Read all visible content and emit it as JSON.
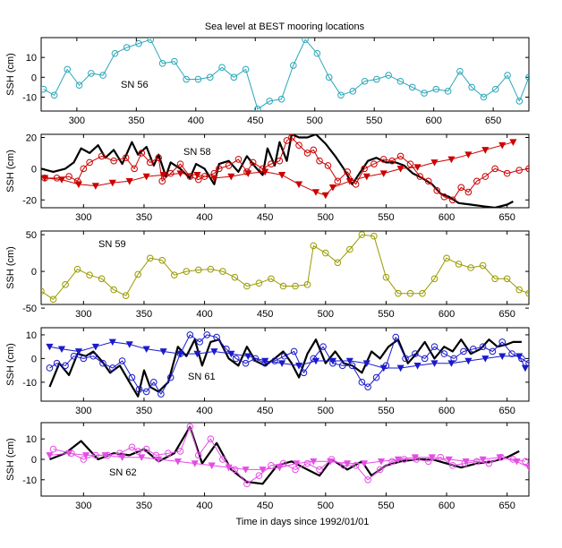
{
  "figure": {
    "title": "Sea level at BEST mooring locations",
    "xlabel": "Time in days since 1992/01/01"
  },
  "chart_data": [
    {
      "type": "line",
      "panel_label": "SN 56",
      "ylabel": "SSH (cm)",
      "xlim": [
        270,
        680
      ],
      "ylim": [
        -17,
        20
      ],
      "xticks": [
        300,
        350,
        400,
        450,
        500,
        550,
        600,
        650
      ],
      "yticks": [
        -10,
        0,
        10
      ],
      "series": [
        {
          "color": "#2aa7b8",
          "marker": "circle",
          "line": "solid",
          "x": [
            272,
            281,
            292,
            302,
            312,
            322,
            332,
            342,
            352,
            362,
            372,
            382,
            392,
            402,
            412,
            422,
            432,
            442,
            452,
            462,
            472,
            482,
            492,
            502,
            512,
            522,
            532,
            542,
            552,
            562,
            572,
            582,
            592,
            602,
            612,
            622,
            632,
            642,
            652,
            662,
            672,
            680
          ],
          "y": [
            -6,
            -9,
            4,
            -4,
            2,
            1,
            12,
            15,
            17,
            19,
            7,
            8,
            -1,
            -1,
            0,
            5,
            0,
            4,
            -16,
            -12,
            -11,
            6,
            19,
            12,
            0,
            -9,
            -7,
            -2,
            -1,
            1,
            -2,
            -5,
            -8,
            -6,
            -7,
            3,
            -5,
            -10,
            -6,
            1,
            -12,
            0
          ]
        }
      ]
    },
    {
      "type": "line",
      "panel_label": "SN 58",
      "ylabel": "SSH (cm)",
      "xlim": [
        265,
        668
      ],
      "ylim": [
        -25,
        22
      ],
      "xticks": [
        300,
        350,
        400,
        450,
        500,
        550,
        600,
        650
      ],
      "yticks": [
        -20,
        0,
        20
      ],
      "series": [
        {
          "color": "#000000",
          "marker": "none",
          "line": "thick",
          "x": [
            265,
            275,
            285,
            292,
            298,
            305,
            312,
            318,
            325,
            332,
            340,
            345,
            352,
            358,
            362,
            368,
            372,
            380,
            388,
            393,
            400,
            408,
            412,
            420,
            428,
            435,
            442,
            448,
            452,
            458,
            462,
            468,
            472,
            478,
            485,
            492,
            500,
            508,
            515,
            522,
            528,
            535,
            542,
            550,
            558,
            565,
            572,
            580,
            588,
            595,
            602,
            610,
            620,
            630,
            640,
            650,
            655
          ],
          "y": [
            0,
            -2,
            0,
            4,
            13,
            10,
            15,
            7,
            12,
            3,
            17,
            9,
            14,
            2,
            9,
            -5,
            4,
            0,
            -6,
            3,
            0,
            -10,
            3,
            5,
            -2,
            8,
            1,
            -4,
            13,
            2,
            17,
            5,
            22,
            20,
            20,
            22,
            16,
            8,
            0,
            -10,
            -3,
            5,
            7,
            4,
            4,
            2,
            -3,
            -6,
            -10,
            -16,
            -18,
            -22,
            -23,
            -24,
            -25,
            -23,
            -21
          ]
        },
        {
          "color": "#cc0000",
          "marker": "circle",
          "line": "solid",
          "x": [
            268,
            278,
            288,
            295,
            300,
            305,
            315,
            325,
            335,
            342,
            348,
            355,
            362,
            365,
            372,
            380,
            388,
            395,
            400,
            408,
            412,
            420,
            428,
            435,
            440,
            448,
            455,
            462,
            468,
            472,
            478,
            485,
            490,
            495,
            502,
            510,
            518,
            525,
            532,
            540,
            548,
            555,
            562,
            570,
            578,
            585,
            592,
            598,
            605,
            612,
            618,
            625,
            632,
            640,
            650,
            660,
            668
          ],
          "y": [
            -6,
            -6,
            -5,
            -8,
            0,
            4,
            8,
            5,
            7,
            0,
            10,
            4,
            7,
            -8,
            -3,
            3,
            -5,
            -7,
            -5,
            -3,
            0,
            2,
            6,
            -2,
            4,
            0,
            3,
            5,
            18,
            20,
            15,
            10,
            12,
            5,
            2,
            -8,
            -2,
            -10,
            0,
            3,
            6,
            5,
            8,
            3,
            -5,
            -8,
            -14,
            -18,
            -20,
            -12,
            -15,
            -8,
            -5,
            0,
            -3,
            -1,
            0
          ]
        },
        {
          "color": "#cc0000",
          "marker": "triangle",
          "line": "solid",
          "x": [
            268,
            282,
            296,
            310,
            324,
            338,
            352,
            366,
            380,
            394,
            408,
            422,
            436,
            450,
            464,
            478,
            492,
            500,
            506,
            520,
            534,
            548,
            562,
            576,
            590,
            604,
            618,
            632,
            646,
            655
          ],
          "y": [
            -6,
            -7,
            -10,
            -11,
            -9,
            -8,
            -5,
            -4,
            -3,
            -4,
            -6,
            -5,
            -3,
            -2,
            -4,
            -10,
            -15,
            -17,
            -12,
            -8,
            -5,
            -3,
            0,
            1,
            4,
            6,
            9,
            12,
            15,
            17
          ]
        }
      ]
    },
    {
      "type": "line",
      "panel_label": "SN 59",
      "ylabel": "SSH (cm)",
      "xlim": [
        265,
        668
      ],
      "ylim": [
        -45,
        55
      ],
      "xticks": [
        300,
        350,
        400,
        450,
        500,
        550,
        600,
        650
      ],
      "yticks": [
        -50,
        0,
        50
      ],
      "series": [
        {
          "color": "#9a9a00",
          "marker": "circle",
          "line": "solid",
          "x": [
            265,
            275,
            285,
            295,
            305,
            315,
            325,
            335,
            345,
            355,
            365,
            375,
            385,
            395,
            405,
            415,
            425,
            435,
            445,
            455,
            465,
            475,
            485,
            490,
            500,
            510,
            520,
            530,
            540,
            550,
            560,
            570,
            580,
            590,
            600,
            610,
            620,
            630,
            640,
            650,
            660,
            668
          ],
          "y": [
            -27,
            -38,
            -18,
            3,
            -5,
            -10,
            -25,
            -33,
            -4,
            18,
            15,
            -5,
            0,
            2,
            3,
            0,
            -8,
            -20,
            -16,
            -10,
            -20,
            -20,
            -18,
            35,
            25,
            12,
            30,
            50,
            48,
            -8,
            -30,
            -30,
            -30,
            -10,
            18,
            10,
            5,
            8,
            -10,
            -10,
            -25,
            -30
          ]
        }
      ]
    },
    {
      "type": "line",
      "panel_label": "SN 61",
      "ylabel": "SSH (cm)",
      "xlim": [
        265,
        668
      ],
      "ylim": [
        -18,
        13
      ],
      "xticks": [
        300,
        350,
        400,
        450,
        500,
        550,
        600,
        650
      ],
      "yticks": [
        -10,
        0,
        10
      ],
      "series": [
        {
          "color": "#000000",
          "marker": "none",
          "line": "thick",
          "x": [
            272,
            280,
            288,
            295,
            302,
            308,
            315,
            322,
            330,
            338,
            345,
            350,
            355,
            362,
            370,
            378,
            385,
            392,
            398,
            405,
            412,
            420,
            428,
            435,
            442,
            450,
            458,
            465,
            472,
            478,
            485,
            492,
            500,
            508,
            515,
            522,
            530,
            538,
            545,
            552,
            560,
            568,
            575,
            582,
            590,
            598,
            605,
            612,
            620,
            628,
            635,
            642,
            650,
            655,
            662
          ],
          "y": [
            -12,
            -2,
            -7,
            2,
            1,
            3,
            -1,
            -6,
            -3,
            -10,
            -16,
            -5,
            -12,
            -14,
            -10,
            5,
            1,
            8,
            -3,
            7,
            8,
            0,
            -3,
            5,
            -1,
            -3,
            0,
            3,
            -2,
            -8,
            2,
            8,
            -2,
            3,
            -2,
            -3,
            -6,
            3,
            0,
            5,
            8,
            -2,
            2,
            7,
            0,
            5,
            3,
            8,
            2,
            4,
            8,
            5,
            6,
            7,
            7
          ]
        },
        {
          "color": "#1a1acc",
          "marker": "circle",
          "line": "solid",
          "x": [
            272,
            278,
            285,
            292,
            300,
            308,
            316,
            324,
            332,
            340,
            346,
            352,
            358,
            364,
            372,
            380,
            388,
            396,
            402,
            410,
            418,
            426,
            434,
            442,
            450,
            458,
            466,
            474,
            482,
            490,
            498,
            506,
            514,
            522,
            530,
            535,
            542,
            550,
            558,
            566,
            574,
            582,
            590,
            598,
            606,
            614,
            622,
            630,
            638,
            646,
            654,
            662,
            668
          ],
          "y": [
            -4,
            -2,
            -3,
            1,
            0,
            1,
            -2,
            -4,
            -1,
            -8,
            -13,
            -14,
            -10,
            -15,
            -8,
            2,
            10,
            7,
            10,
            9,
            4,
            0,
            -2,
            0,
            -2,
            -1,
            1,
            3,
            -6,
            0,
            5,
            -2,
            -3,
            -3,
            -10,
            -12,
            -8,
            -3,
            9,
            0,
            2,
            0,
            5,
            2,
            0,
            3,
            4,
            5,
            3,
            7,
            2,
            0,
            -2
          ]
        },
        {
          "color": "#1a1acc",
          "marker": "triangle",
          "line": "solid",
          "x": [
            272,
            282,
            296,
            310,
            324,
            338,
            352,
            366,
            380,
            394,
            408,
            422,
            436,
            450,
            464,
            478,
            492,
            506,
            520,
            534,
            548,
            562,
            576,
            590,
            604,
            618,
            632,
            646,
            660,
            665
          ],
          "y": [
            5,
            4,
            3,
            5,
            7,
            6,
            4,
            3,
            2,
            2,
            3,
            2,
            1,
            -1,
            -2,
            -3,
            -1,
            -1,
            -1,
            -2,
            -4,
            -4,
            -3,
            -2,
            -2,
            -1,
            0,
            1,
            1,
            -4
          ]
        }
      ]
    },
    {
      "type": "line",
      "panel_label": "SN 62",
      "ylabel": "SSH (cm)",
      "xlim": [
        265,
        668
      ],
      "ylim": [
        -18,
        18
      ],
      "xticks": [
        300,
        350,
        400,
        450,
        500,
        550,
        600,
        650
      ],
      "yticks": [
        -10,
        0,
        10
      ],
      "series": [
        {
          "color": "#000000",
          "marker": "none",
          "line": "thick",
          "x": [
            272,
            285,
            298,
            312,
            325,
            338,
            350,
            362,
            375,
            388,
            398,
            410,
            422,
            435,
            448,
            460,
            472,
            485,
            495,
            505,
            518,
            530,
            538,
            550,
            562,
            575,
            588,
            600,
            612,
            625,
            638,
            650,
            660
          ],
          "y": [
            0,
            3,
            9,
            0,
            3,
            2,
            5,
            -1,
            3,
            16,
            -2,
            8,
            -5,
            -11,
            -12,
            -3,
            -1,
            -5,
            -8,
            0,
            -5,
            -1,
            -8,
            -3,
            -1,
            0,
            0,
            -2,
            -4,
            -2,
            -1,
            1,
            4
          ]
        },
        {
          "color": "#e64ce6",
          "marker": "circle",
          "line": "solid",
          "x": [
            275,
            290,
            300,
            310,
            320,
            330,
            340,
            345,
            352,
            360,
            370,
            380,
            388,
            395,
            405,
            415,
            425,
            435,
            445,
            455,
            465,
            475,
            485,
            495,
            505,
            515,
            525,
            535,
            545,
            555,
            565,
            575,
            585,
            595,
            605,
            615,
            625,
            635,
            645,
            655,
            665
          ],
          "y": [
            5,
            3,
            0,
            2,
            2,
            3,
            6,
            4,
            5,
            2,
            3,
            4,
            16,
            2,
            10,
            0,
            -5,
            -12,
            -8,
            -3,
            -2,
            -5,
            -2,
            -5,
            0,
            -3,
            -3,
            -10,
            -5,
            -1,
            0,
            0,
            -1,
            1,
            -3,
            -2,
            -1,
            -2,
            1,
            0,
            -1
          ]
        },
        {
          "color": "#e64ce6",
          "marker": "triangle",
          "line": "solid",
          "x": [
            272,
            288,
            302,
            318,
            332,
            348,
            362,
            378,
            392,
            406,
            420,
            434,
            448,
            462,
            476,
            490,
            504,
            518,
            532,
            546,
            560,
            574,
            588,
            602,
            616,
            630,
            644,
            658,
            668
          ],
          "y": [
            2,
            3,
            2,
            2,
            1,
            1,
            0,
            -1,
            -2,
            -3,
            -4,
            -5,
            -5,
            -4,
            -2,
            -1,
            -1,
            -2,
            -2,
            -1,
            0,
            1,
            1,
            0,
            -1,
            0,
            1,
            -1,
            -4
          ]
        }
      ]
    }
  ]
}
